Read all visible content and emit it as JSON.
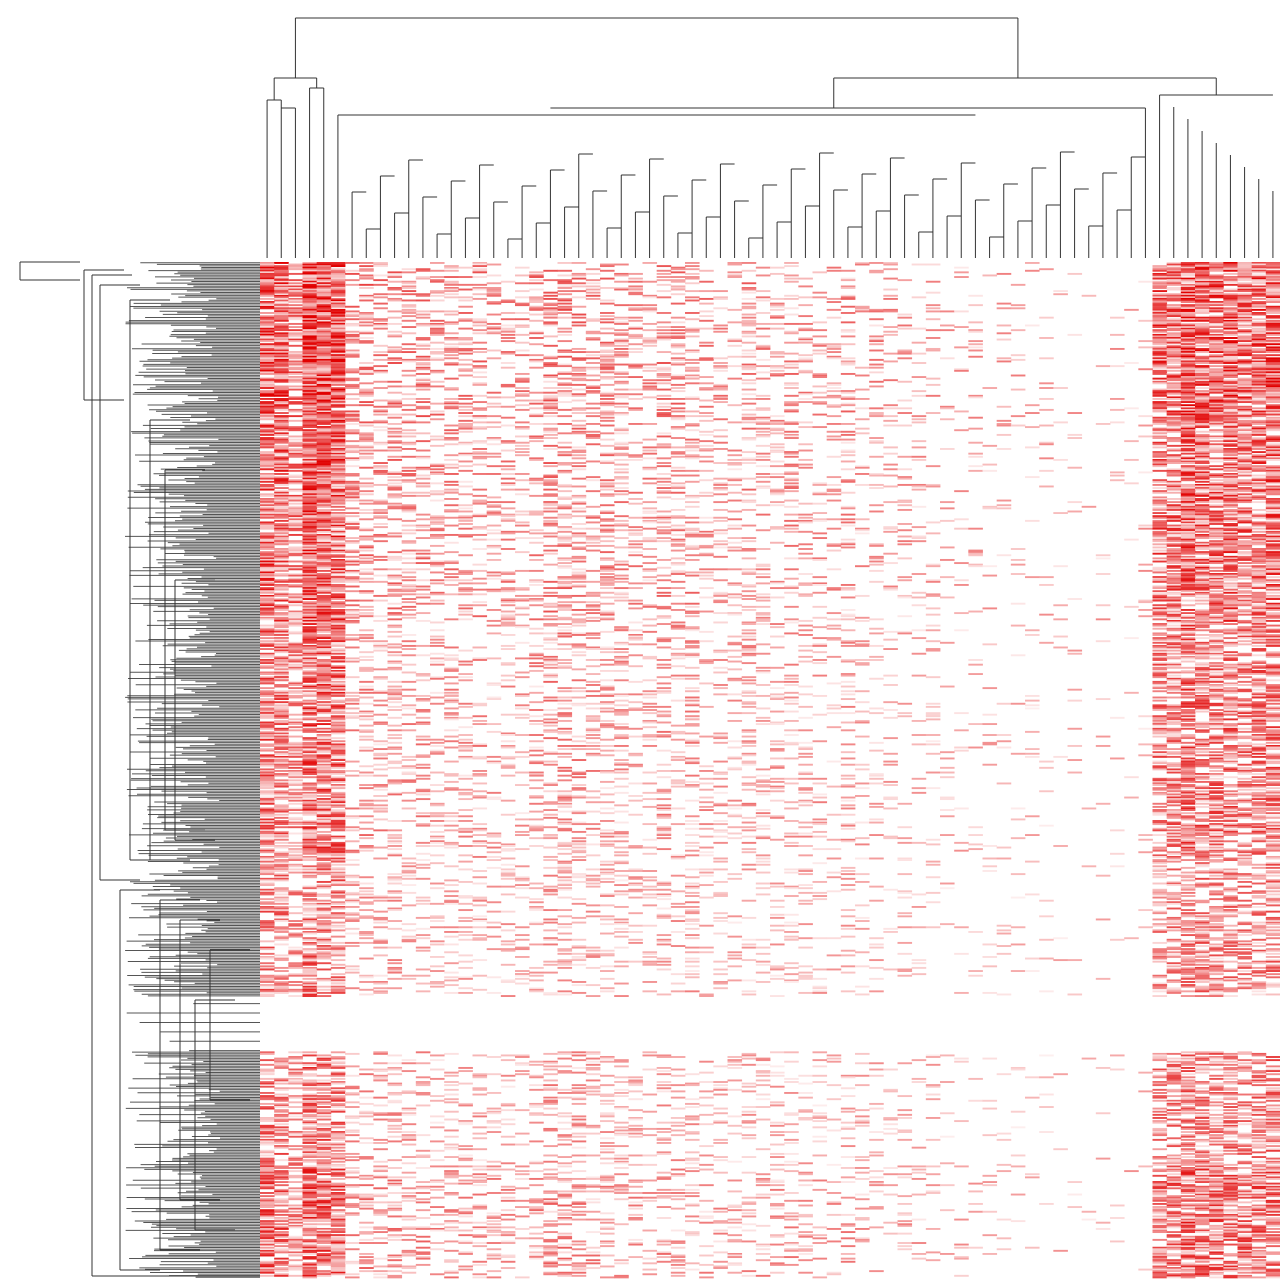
{
  "chart_data": {
    "type": "heatmap",
    "title": "",
    "xlabel": "",
    "ylabel": "",
    "grid": false,
    "legend": "none",
    "colors": {
      "low": "#ffffff",
      "high": "#e00000",
      "dendrogram": "#333333",
      "row_leaf": "#555555"
    },
    "n_rows": 650,
    "n_cols": 72,
    "value_range": [
      0,
      1
    ],
    "column_intensity": [
      0.82,
      0.78,
      0.55,
      0.95,
      0.92,
      0.88,
      0.35,
      0.38,
      0.32,
      0.36,
      0.3,
      0.33,
      0.28,
      0.3,
      0.26,
      0.32,
      0.24,
      0.25,
      0.22,
      0.3,
      0.4,
      0.38,
      0.35,
      0.28,
      0.3,
      0.26,
      0.24,
      0.22,
      0.33,
      0.28,
      0.3,
      0.22,
      0.2,
      0.18,
      0.26,
      0.22,
      0.2,
      0.24,
      0.18,
      0.2,
      0.16,
      0.22,
      0.14,
      0.16,
      0.12,
      0.15,
      0.1,
      0.12,
      0.08,
      0.06,
      0.07,
      0.05,
      0.06,
      0.05,
      0.04,
      0.04,
      0.03,
      0.03,
      0.02,
      0.05,
      0.04,
      0.02,
      0.06,
      0.72,
      0.7,
      0.86,
      0.8,
      0.74,
      0.78,
      0.7,
      0.76,
      0.8
    ],
    "row_bands": [
      {
        "rows": [
          0,
          100
        ],
        "intensity": 1.0
      },
      {
        "rows": [
          100,
          230
        ],
        "intensity": 0.85
      },
      {
        "rows": [
          230,
          380
        ],
        "intensity": 0.65
      },
      {
        "rows": [
          380,
          470
        ],
        "intensity": 0.45
      },
      {
        "rows": [
          470,
          505
        ],
        "intensity": 0.0
      },
      {
        "rows": [
          505,
          580
        ],
        "intensity": 0.5
      },
      {
        "rows": [
          580,
          650
        ],
        "intensity": 0.75
      }
    ]
  }
}
